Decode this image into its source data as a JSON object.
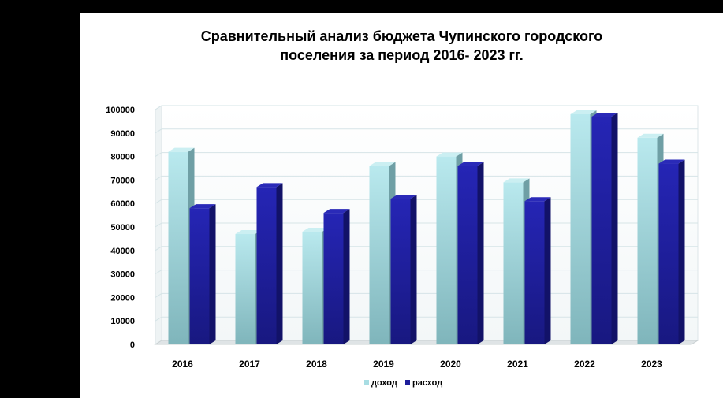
{
  "chart_data": {
    "type": "bar",
    "title_lines": [
      "Сравнительный анализ бюджета Чупинского городского",
      "поселения за период 2016- 2023 гг."
    ],
    "categories": [
      "2016",
      "2017",
      "2018",
      "2019",
      "2020",
      "2021",
      "2022",
      "2023"
    ],
    "series": [
      {
        "name": "доход",
        "values": [
          82000,
          47000,
          48000,
          76000,
          80000,
          69000,
          98000,
          88000
        ],
        "color": "#a8dde3"
      },
      {
        "name": "расход",
        "values": [
          58000,
          67000,
          56000,
          62000,
          76000,
          61000,
          97000,
          77000
        ],
        "color": "#1d1d9a"
      }
    ],
    "ylim": [
      0,
      100000
    ],
    "yticks": [
      0,
      10000,
      20000,
      30000,
      40000,
      50000,
      60000,
      70000,
      80000,
      90000,
      100000
    ],
    "grid": true,
    "legend_position": "bottom",
    "three_d": true
  }
}
